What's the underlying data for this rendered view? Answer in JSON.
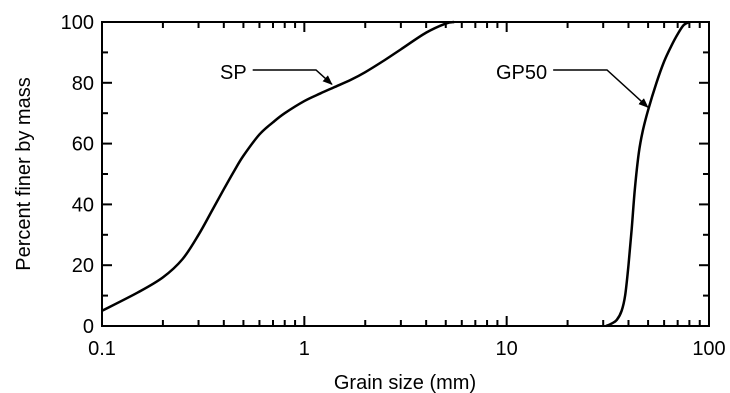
{
  "chart_data": {
    "type": "line",
    "title": "",
    "xlabel": "Grain size  (mm)",
    "ylabel": "Percent finer by mass",
    "xscale": "log",
    "xlim": [
      0.1,
      100
    ],
    "ylim": [
      0,
      100
    ],
    "x_ticks": [
      {
        "value": 0.1,
        "label": "0.1"
      },
      {
        "value": 1,
        "label": "1"
      },
      {
        "value": 10,
        "label": "10"
      },
      {
        "value": 100,
        "label": "100"
      }
    ],
    "y_ticks": [
      {
        "value": 0,
        "label": "0"
      },
      {
        "value": 20,
        "label": "20"
      },
      {
        "value": 40,
        "label": "40"
      },
      {
        "value": 60,
        "label": "60"
      },
      {
        "value": 80,
        "label": "80"
      },
      {
        "value": 100,
        "label": "100"
      }
    ],
    "grid": false,
    "legend": "none",
    "series": [
      {
        "name": "SP",
        "x": [
          0.1,
          0.15,
          0.2,
          0.25,
          0.3,
          0.35,
          0.4,
          0.45,
          0.5,
          0.6,
          0.7,
          0.8,
          1.0,
          1.2,
          1.4,
          1.7,
          2.0,
          2.5,
          3.0,
          4.0,
          5.0,
          5.5
        ],
        "y": [
          5,
          11,
          16,
          22,
          30,
          38,
          45,
          51,
          56,
          63,
          67,
          70,
          74,
          76.5,
          78.5,
          81,
          83.5,
          87.5,
          91,
          96.5,
          99.5,
          100
        ]
      },
      {
        "name": "GP50",
        "x": [
          31,
          33,
          35,
          37,
          38.5,
          40,
          41.5,
          43,
          45,
          47,
          50,
          55,
          60,
          65,
          70,
          75,
          80
        ],
        "y": [
          0,
          0.8,
          2,
          5,
          10,
          20,
          32,
          45,
          57,
          64,
          71,
          80,
          87,
          92,
          96,
          99,
          100
        ]
      }
    ],
    "annotations": [
      {
        "text": "SP",
        "points_to": {
          "x": 1.4,
          "y": 78.5
        }
      },
      {
        "text": "GP50",
        "points_to": {
          "x": 51,
          "y": 71
        }
      }
    ]
  }
}
